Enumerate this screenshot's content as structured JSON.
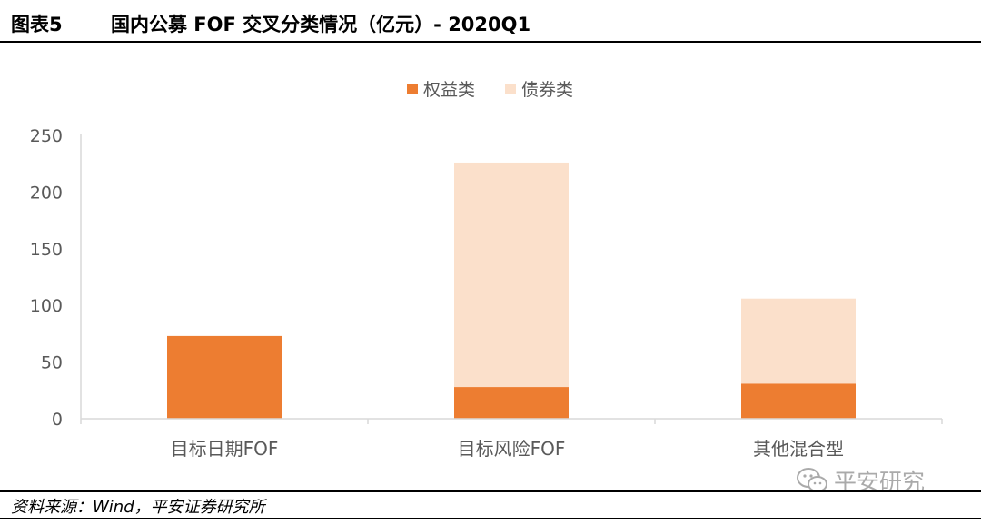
{
  "header": {
    "figure_label": "图表5",
    "title": "国内公募 FOF 交叉分类情况（亿元）- 2020Q1"
  },
  "footer": {
    "source": "资料来源：Wind，平安证券研究所",
    "watermark": "平安研究",
    "watermark_icon": "wechat-icon"
  },
  "colors": {
    "equity": "#ED7D31",
    "bond": "#FBE0CB",
    "axis": "#D9D9D9",
    "tick_text": "#595959"
  },
  "chart_data": {
    "type": "bar",
    "stacked": true,
    "categories": [
      "目标日期FOF",
      "目标风险FOF",
      "其他混合型"
    ],
    "series": [
      {
        "name": "权益类",
        "values": [
          73,
          28,
          31
        ],
        "color": "#ED7D31"
      },
      {
        "name": "债券类",
        "values": [
          0,
          198,
          75
        ],
        "color": "#FBE0CB"
      }
    ],
    "ylim": [
      0,
      250
    ],
    "yticks": [
      0,
      50,
      100,
      150,
      200,
      250
    ],
    "grid": false,
    "legend": "top-center",
    "xlabel": "",
    "ylabel": ""
  }
}
